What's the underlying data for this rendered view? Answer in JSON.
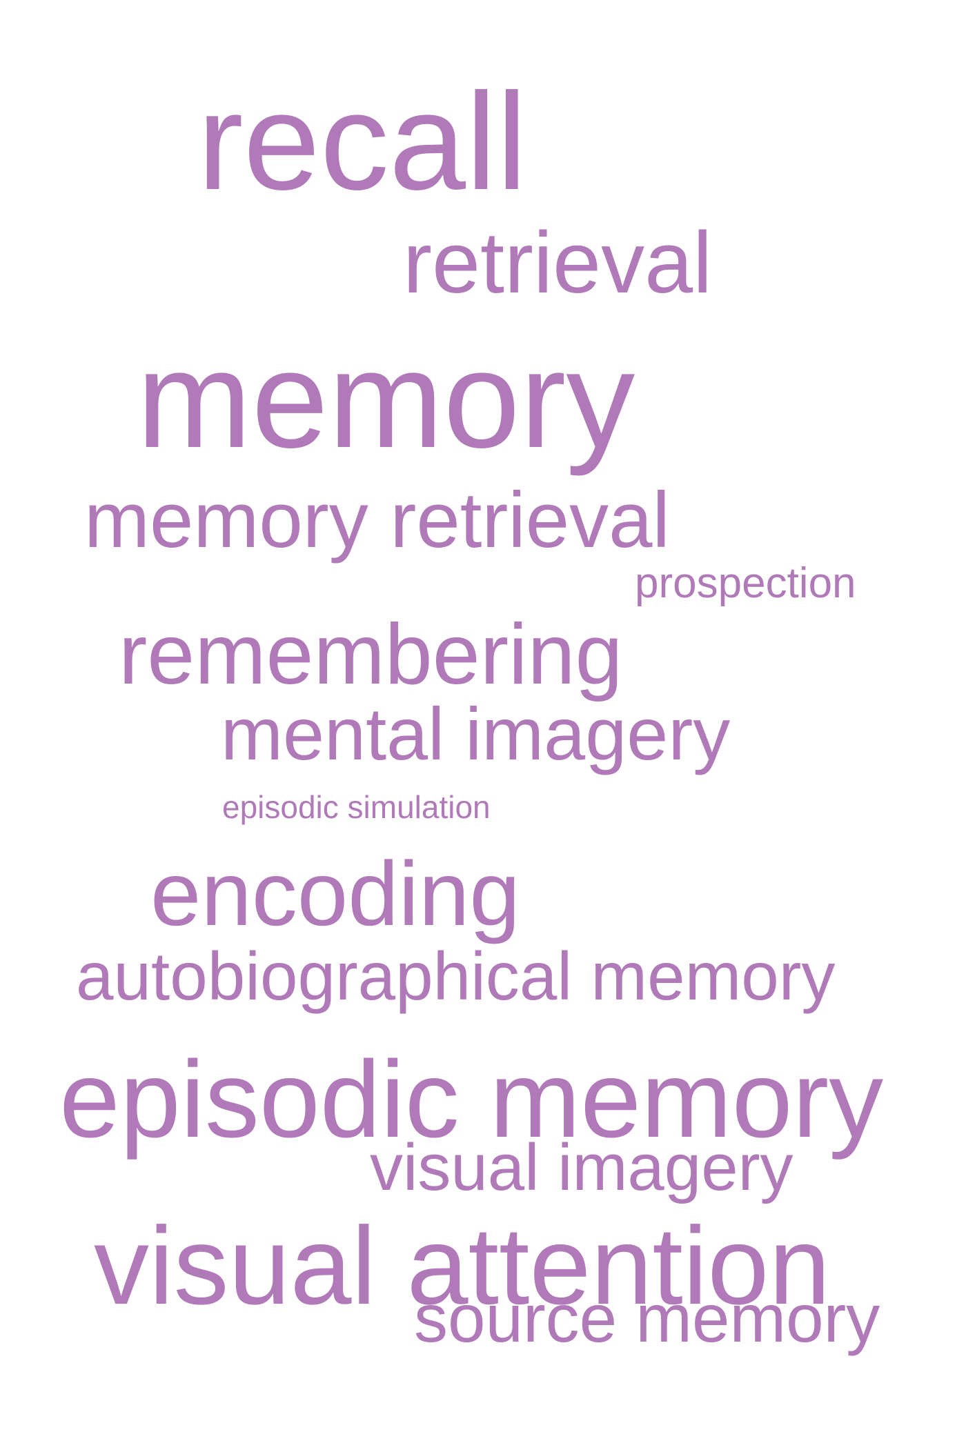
{
  "word_color": "#b07ab8",
  "background_color": "#ffffff",
  "words": [
    {
      "text": "recall",
      "weight": 1.0
    },
    {
      "text": "retrieval",
      "weight": 0.63
    },
    {
      "text": "memory",
      "weight": 1.0
    },
    {
      "text": "memory retrieval",
      "weight": 0.57
    },
    {
      "text": "prospection",
      "weight": 0.31
    },
    {
      "text": "remembering",
      "weight": 0.62
    },
    {
      "text": "mental imagery",
      "weight": 0.54
    },
    {
      "text": "episodic simulation",
      "weight": 0.24
    },
    {
      "text": "encoding",
      "weight": 0.66
    },
    {
      "text": "autobiographical memory",
      "weight": 0.49
    },
    {
      "text": "episodic memory",
      "weight": 0.78
    },
    {
      "text": "visual imagery",
      "weight": 0.48
    },
    {
      "text": "visual attention",
      "weight": 0.79
    },
    {
      "text": "source memory",
      "weight": 0.49
    }
  ]
}
